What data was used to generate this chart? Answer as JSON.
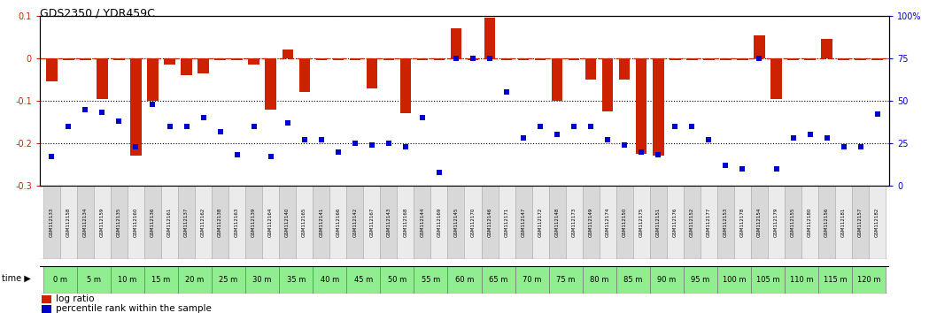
{
  "title": "GDS2350 / YDR459C",
  "gsm_labels": [
    "GSM112133",
    "GSM112158",
    "GSM112134",
    "GSM112159",
    "GSM112135",
    "GSM112160",
    "GSM112136",
    "GSM112161",
    "GSM112137",
    "GSM112162",
    "GSM112138",
    "GSM112163",
    "GSM112139",
    "GSM112164",
    "GSM112140",
    "GSM112165",
    "GSM112141",
    "GSM112166",
    "GSM112142",
    "GSM112167",
    "GSM112143",
    "GSM112168",
    "GSM112144",
    "GSM112169",
    "GSM112145",
    "GSM112170",
    "GSM112146",
    "GSM112171",
    "GSM112147",
    "GSM112172",
    "GSM112148",
    "GSM112173",
    "GSM112149",
    "GSM112174",
    "GSM112150",
    "GSM112175",
    "GSM112151",
    "GSM112176",
    "GSM112152",
    "GSM112177",
    "GSM112153",
    "GSM112178",
    "GSM112154",
    "GSM112179",
    "GSM112155",
    "GSM112180",
    "GSM112156",
    "GSM112181",
    "GSM112157",
    "GSM112182"
  ],
  "time_labels": [
    "0 m",
    "5 m",
    "10 m",
    "15 m",
    "20 m",
    "25 m",
    "30 m",
    "35 m",
    "40 m",
    "45 m",
    "50 m",
    "55 m",
    "60 m",
    "65 m",
    "70 m",
    "75 m",
    "80 m",
    "85 m",
    "90 m",
    "95 m",
    "100 m",
    "105 m",
    "110 m",
    "115 m",
    "120 m"
  ],
  "log_ratio": [
    -0.055,
    -0.005,
    -0.005,
    -0.095,
    -0.005,
    -0.23,
    -0.1,
    -0.015,
    -0.04,
    -0.035,
    -0.005,
    -0.005,
    -0.015,
    -0.12,
    0.02,
    -0.08,
    -0.005,
    -0.005,
    -0.005,
    -0.07,
    -0.005,
    -0.13,
    -0.005,
    -0.005,
    0.07,
    -0.005,
    0.095,
    -0.005,
    -0.005,
    -0.005,
    -0.1,
    -0.005,
    -0.05,
    -0.125,
    -0.05,
    -0.225,
    -0.23,
    -0.005,
    -0.005,
    -0.005,
    -0.005,
    -0.005,
    0.055,
    -0.095,
    -0.005,
    -0.005,
    0.045,
    -0.005,
    -0.005,
    -0.005
  ],
  "percentile": [
    17,
    35,
    45,
    43,
    38,
    23,
    48,
    35,
    35,
    40,
    32,
    18,
    35,
    17,
    37,
    27,
    27,
    20,
    25,
    24,
    25,
    23,
    40,
    8,
    75,
    75,
    75,
    55,
    28,
    35,
    30,
    35,
    35,
    27,
    24,
    20,
    18,
    35,
    35,
    27,
    12,
    10,
    75,
    10,
    28,
    30,
    28,
    23,
    23,
    42
  ],
  "bar_color": "#cc2200",
  "dot_color": "#0000cc",
  "ylim": [
    -0.3,
    0.1
  ],
  "y2lim": [
    0,
    100
  ],
  "yticks": [
    0.1,
    0.0,
    -0.1,
    -0.2,
    -0.3
  ],
  "y2ticks": [
    100,
    75,
    50,
    25,
    0
  ],
  "gsm_bg_even": "#d8d8d8",
  "gsm_bg_odd": "#ebebeb",
  "gsm_edge": "#aaaaaa",
  "time_bg": "#90ee90",
  "time_edge": "#666666",
  "black_bar": "#111111"
}
